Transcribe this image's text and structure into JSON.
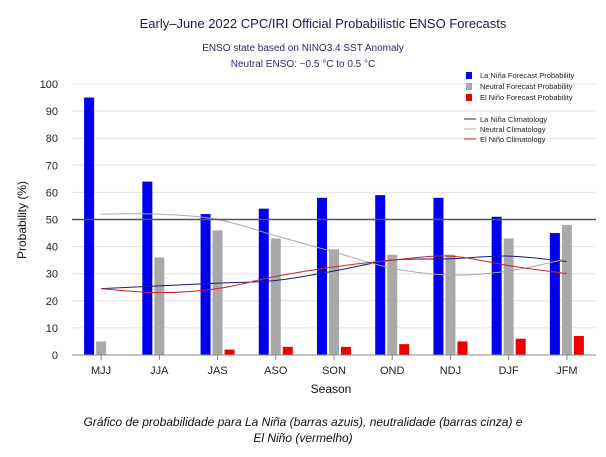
{
  "chart_data": {
    "type": "bar",
    "title": "Early–June 2022 CPC/IRI Official Probabilistic ENSO Forecasts",
    "subtitle_1": "ENSO state based on NINO3.4 SST Anomaly",
    "subtitle_2": "Neutral ENSO: −0.5 °C to 0.5 °C",
    "xlabel": "Season",
    "ylabel": "Probability (%)",
    "ylim": [
      0,
      100
    ],
    "yticks": [
      0,
      10,
      20,
      30,
      40,
      50,
      60,
      70,
      80,
      90,
      100
    ],
    "reference_line": 50,
    "categories": [
      "MJJ",
      "JJA",
      "JAS",
      "ASO",
      "SON",
      "OND",
      "NDJ",
      "DJF",
      "JFM"
    ],
    "series": [
      {
        "name": "La Niña Forecast Probability",
        "color": "#0000ee",
        "values": [
          95,
          64,
          52,
          54,
          58,
          59,
          58,
          51,
          45
        ]
      },
      {
        "name": "Neutral Forecast Probability",
        "color": "#a9a9a9",
        "values": [
          5,
          36,
          46,
          43,
          39,
          37,
          37,
          43,
          48
        ]
      },
      {
        "name": "El Niño Forecast Probability",
        "color": "#ee0000",
        "values": [
          0,
          0,
          2,
          3,
          3,
          4,
          5,
          6,
          7
        ]
      }
    ],
    "climatology": [
      {
        "name": "La Niña Climatology",
        "color": "#1a1a8c",
        "values": [
          24.5,
          25.5,
          26.5,
          27.5,
          31,
          35,
          35.5,
          36.5,
          34.5
        ]
      },
      {
        "name": "Neutral Climatology",
        "color": "#a9a9a9",
        "values": [
          52,
          52,
          50,
          44,
          38,
          32,
          29.5,
          31,
          35.5
        ]
      },
      {
        "name": "El Niño Climatology",
        "color": "#cc2222",
        "values": [
          24.5,
          23,
          24.5,
          29,
          32.5,
          35,
          36.5,
          33,
          30
        ]
      }
    ],
    "legend_position": "top-right"
  },
  "caption": {
    "line1": "Gráfico de probabilidade para La Niña (barras azuis), neutralidade (barras cinza) e",
    "line2": "El Niño (vermelho)"
  }
}
